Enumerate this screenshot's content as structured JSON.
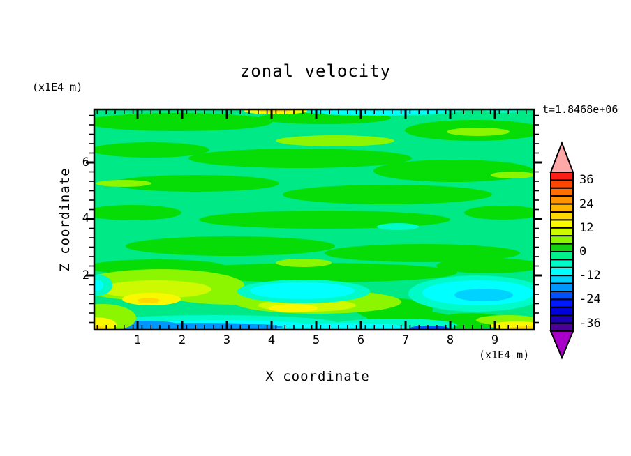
{
  "title": "zonal velocity",
  "time_label": "t=1.8468e+06",
  "y_axis": {
    "label": "Z coordinate",
    "units": "(x1E4 m)",
    "tick_labels": [
      "6",
      "4",
      "2"
    ]
  },
  "x_axis": {
    "label": "X coordinate",
    "units": "(x1E4 m)",
    "tick_labels": [
      "1",
      "2",
      "3",
      "4",
      "5",
      "6",
      "7",
      "8",
      "9"
    ]
  },
  "colorbar": {
    "tick_labels": [
      "36",
      "24",
      "12",
      "0",
      "-12",
      "-24",
      "-36"
    ],
    "above_color": "#FFA8A8",
    "below_color": "#A800C8",
    "segment_colors": [
      "#FA1E14",
      "#FF4600",
      "#FF6E00",
      "#FF9400",
      "#FFB600",
      "#FFD800",
      "#FAF800",
      "#CDFA00",
      "#8CF500",
      "#12D212",
      "#00F08C",
      "#00FAC8",
      "#00FFFF",
      "#00D2FF",
      "#0096FF",
      "#0050FF",
      "#0019FF",
      "#0000DC",
      "#1E00B4",
      "#4B0096"
    ]
  },
  "chart_data": {
    "type": "heatmap",
    "subtype": "filled-contour",
    "title": "zonal velocity",
    "time_annotation": "t=1.8468e+06",
    "xlabel": "X coordinate",
    "x_units": "(x1E4 m)",
    "ylabel": "Z coordinate",
    "y_units": "(x1E4 m)",
    "xlim": [
      0,
      9.85
    ],
    "ylim": [
      0,
      7.9
    ],
    "x_ticks": [
      1,
      2,
      3,
      4,
      5,
      6,
      7,
      8,
      9
    ],
    "y_ticks": [
      2,
      4,
      6
    ],
    "contour_levels": {
      "min": -40,
      "max": 40,
      "step": 4
    },
    "colorbar_labeled_levels": [
      36,
      24,
      12,
      0,
      -12,
      -24,
      -36
    ],
    "palette_top_to_bottom": [
      "#FA1E14",
      "#FF4600",
      "#FF6E00",
      "#FF9400",
      "#FFB600",
      "#FFD800",
      "#FAF800",
      "#CDFA00",
      "#8CF500",
      "#12D212",
      "#00F08C",
      "#00FAC8",
      "#00FFFF",
      "#00D2FF",
      "#0096FF",
      "#0050FF",
      "#0019FF",
      "#0000DC",
      "#1E00B4",
      "#4B0096"
    ],
    "field_estimate": {
      "x_centers": [
        0.5,
        1.5,
        2.5,
        3.5,
        4.5,
        5.5,
        6.5,
        7.5,
        8.5,
        9.5
      ],
      "z_centers_top_to_bottom": [
        7.5,
        6.5,
        5.5,
        4.5,
        3.5,
        2.5,
        1.5,
        0.5
      ],
      "values": [
        [
          0,
          0,
          2,
          6,
          -2,
          -6,
          -6,
          -4,
          0,
          0
        ],
        [
          0,
          2,
          0,
          2,
          5,
          5,
          2,
          0,
          2,
          0
        ],
        [
          1,
          0,
          0,
          0,
          0,
          2,
          0,
          0,
          0,
          1
        ],
        [
          0,
          1,
          2,
          0,
          0,
          0,
          1,
          0,
          -1,
          0
        ],
        [
          0,
          0,
          1,
          0,
          0,
          0,
          -5,
          -2,
          0,
          0
        ],
        [
          2,
          2,
          0,
          1,
          0,
          0,
          0,
          0,
          -2,
          -1
        ],
        [
          6,
          10,
          6,
          -8,
          -10,
          -6,
          4,
          -8,
          -12,
          -10
        ],
        [
          8,
          -14,
          -12,
          -10,
          -10,
          -12,
          -14,
          -10,
          -4,
          10
        ]
      ]
    }
  }
}
